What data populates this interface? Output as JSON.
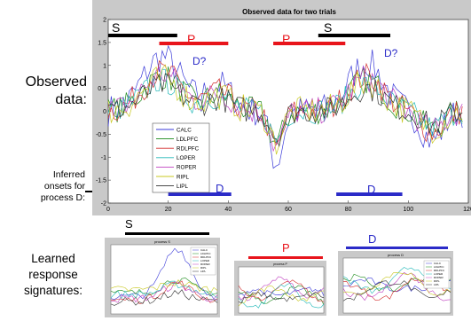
{
  "labels": {
    "observed_line1": "Observed",
    "observed_line2": "data:",
    "inferred_line1": "Inferred",
    "inferred_line2": "onsets for",
    "inferred_line3": "process D:",
    "learned_line1": "Learned",
    "learned_line2": "response",
    "learned_line3": "signatures:"
  },
  "colors": {
    "S": "#000000",
    "P": "#e8141b",
    "D": "#2b2bc8"
  },
  "main_chart": {
    "title": "Observed data for two trials",
    "markers": {
      "S1": "S",
      "P1": "P",
      "D1": "D?",
      "P2": "P",
      "S2": "S",
      "D2": "D?",
      "Dbar1": "D",
      "Dbar2": "D"
    }
  },
  "small_charts": {
    "S_label": "S",
    "P_label": "P",
    "D_label": "D",
    "S_title": "process S",
    "P_title": "process P",
    "D_title": "process D"
  },
  "chart_data": [
    {
      "type": "line",
      "title": "Observed data for two trials",
      "xlim": [
        0,
        120
      ],
      "ylim": [
        -2,
        2
      ],
      "xticks": [
        "0",
        "20",
        "40",
        "60",
        "80",
        "100",
        "120"
      ],
      "yticks": [
        "-2",
        "-1.5",
        "-1",
        "-0.5",
        "0",
        "0.5",
        "1",
        "1.5",
        "2"
      ],
      "grid": false,
      "legend_placement": "bottom-left",
      "series": [
        {
          "name": "CALC",
          "color": "#3a3ad8"
        },
        {
          "name": "LDLPFC",
          "color": "#1a8a1a"
        },
        {
          "name": "RDLPFC",
          "color": "#d22a2a"
        },
        {
          "name": "LOPER",
          "color": "#20b8b8"
        },
        {
          "name": "ROPER",
          "color": "#c040c0"
        },
        {
          "name": "RIPL",
          "color": "#c8c820"
        },
        {
          "name": "LIPL",
          "color": "#303030"
        }
      ],
      "intervals": [
        {
          "label": "S",
          "x": [
            0,
            23
          ]
        },
        {
          "label": "P",
          "x": [
            17,
            40
          ]
        },
        {
          "label": "P",
          "x": [
            55,
            79
          ]
        },
        {
          "label": "S",
          "x": [
            70,
            94
          ]
        },
        {
          "label": "D",
          "x": [
            20,
            41
          ]
        },
        {
          "label": "D",
          "x": [
            76,
            98
          ]
        }
      ]
    },
    {
      "type": "line",
      "title": "process S",
      "series": [
        {
          "name": "CALC"
        },
        {
          "name": "LDLPFC"
        },
        {
          "name": "RDLPFC"
        },
        {
          "name": "LOPER"
        },
        {
          "name": "ROPER"
        },
        {
          "name": "RIPL"
        },
        {
          "name": "LIPL"
        }
      ]
    },
    {
      "type": "line",
      "title": "process P"
    },
    {
      "type": "line",
      "title": "process D",
      "series": [
        {
          "name": "CALC"
        },
        {
          "name": "LDLPFC"
        },
        {
          "name": "RDLPFC"
        },
        {
          "name": "LOPER"
        },
        {
          "name": "ROPER"
        },
        {
          "name": "RIPL"
        },
        {
          "name": "LIPL"
        }
      ]
    }
  ]
}
